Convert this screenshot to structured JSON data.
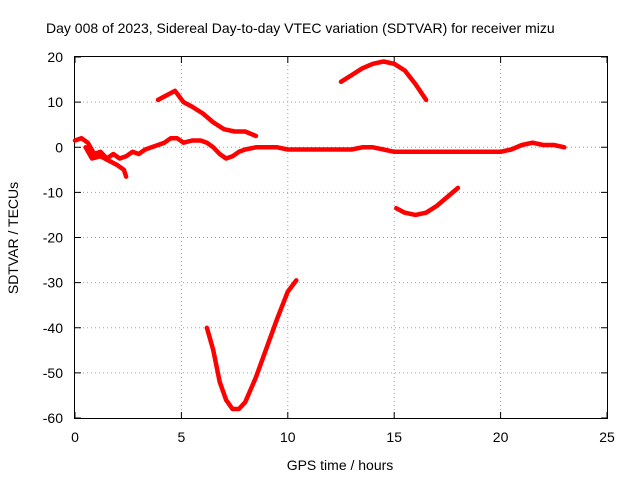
{
  "chart_data": {
    "type": "line",
    "title": "Day 008 of 2023, Sidereal Day-to-day VTEC variation (SDTVAR) for receiver mizu",
    "xlabel": "GPS time / hours",
    "ylabel": "SDTVAR / TECUs",
    "xlim": [
      0,
      25
    ],
    "ylim": [
      -60,
      20
    ],
    "grid": true,
    "x_ticks": [
      "0",
      "5",
      "10",
      "15",
      "20",
      "25"
    ],
    "y_ticks": [
      "-60",
      "-50",
      "-40",
      "-30",
      "-20",
      "-10",
      "0",
      "10",
      "20"
    ],
    "series_color": "#ff0000",
    "series": [
      {
        "name": "main-trace",
        "x": [
          0,
          0.3,
          0.6,
          0.9,
          1.2,
          1.5,
          1.8,
          2.1,
          2.4,
          2.7,
          3.0,
          3.3,
          3.6,
          3.9,
          4.2,
          4.5,
          4.8,
          5.1,
          5.5,
          5.9,
          6.2,
          6.5,
          6.8,
          7.1,
          7.4,
          7.7,
          8.0,
          8.5,
          9.0,
          9.5,
          10.0,
          10.5,
          11.0,
          11.5,
          12.0,
          12.5,
          13.0,
          13.5,
          14.0,
          14.5,
          15.0,
          15.5,
          16.0,
          16.5,
          17.0,
          17.5,
          18.0,
          18.5,
          19.0,
          19.5,
          20.0,
          20.5,
          21.0,
          21.5,
          22.0,
          22.5,
          23.0
        ],
        "y": [
          1.5,
          2.0,
          1.0,
          -1.5,
          -1.0,
          -2.5,
          -1.5,
          -2.5,
          -2.0,
          -1.0,
          -1.5,
          -0.5,
          0.0,
          0.5,
          1.0,
          2.0,
          2.0,
          1.0,
          1.5,
          1.5,
          1.0,
          0.0,
          -1.5,
          -2.5,
          -2.0,
          -1.0,
          -0.5,
          0.0,
          0.0,
          0.0,
          -0.5,
          -0.5,
          -0.5,
          -0.5,
          -0.5,
          -0.5,
          -0.5,
          0.0,
          0.0,
          -0.5,
          -1.0,
          -1.0,
          -1.0,
          -1.0,
          -1.0,
          -1.0,
          -1.0,
          -1.0,
          -1.0,
          -1.0,
          -1.0,
          -0.5,
          0.5,
          1.0,
          0.5,
          0.5,
          0.0
        ]
      },
      {
        "name": "early-dip",
        "x": [
          0.5,
          0.8,
          1.2,
          1.6,
          2.0,
          2.3,
          2.4
        ],
        "y": [
          0,
          -2.5,
          -2.0,
          -3.0,
          -4.0,
          -5.0,
          -6.5
        ]
      },
      {
        "name": "upper-left-arc",
        "x": [
          3.9,
          4.3,
          4.7,
          5.1,
          5.5,
          6.0,
          6.5,
          7.0,
          7.5,
          8.0,
          8.5
        ],
        "y": [
          10.5,
          11.5,
          12.5,
          10.0,
          9.0,
          7.5,
          5.5,
          4.0,
          3.5,
          3.5,
          2.5
        ]
      },
      {
        "name": "deep-v",
        "x": [
          6.2,
          6.5,
          6.8,
          7.1,
          7.4,
          7.7,
          8.0,
          8.5,
          9.0,
          9.5,
          10.0,
          10.4
        ],
        "y": [
          -40.0,
          -45.0,
          -52.0,
          -56.0,
          -58.0,
          -58.0,
          -56.5,
          -51.0,
          -44.5,
          -38.0,
          -32.0,
          -29.5
        ]
      },
      {
        "name": "upper-right-arc",
        "x": [
          12.5,
          13.0,
          13.5,
          14.0,
          14.5,
          15.0,
          15.5,
          16.0,
          16.5
        ],
        "y": [
          14.5,
          16.0,
          17.5,
          18.5,
          19.0,
          18.5,
          17.0,
          14.0,
          10.5
        ]
      },
      {
        "name": "lower-right-arc",
        "x": [
          15.1,
          15.5,
          16.0,
          16.5,
          17.0,
          17.5,
          18.0
        ],
        "y": [
          -13.5,
          -14.5,
          -15.0,
          -14.5,
          -13.0,
          -11.0,
          -9.0
        ]
      }
    ]
  }
}
